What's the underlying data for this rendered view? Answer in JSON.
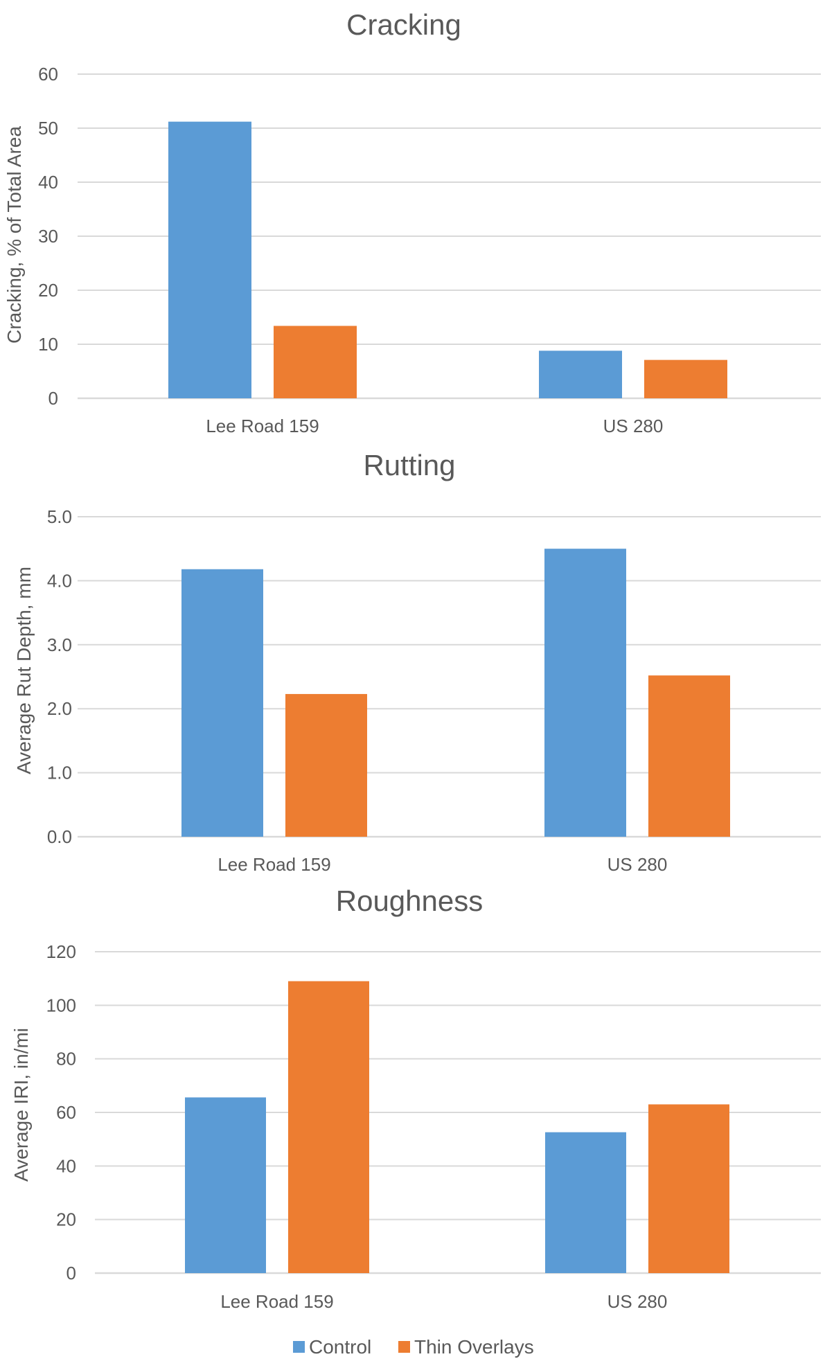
{
  "chart_data": [
    {
      "type": "bar",
      "title": "Cracking",
      "ylabel": "Cracking, % of Total Area",
      "xlabel": "",
      "categories": [
        "Lee Road 159",
        "US 280"
      ],
      "ylim": [
        0,
        60
      ],
      "yticks": [
        "0",
        "10",
        "20",
        "30",
        "40",
        "50",
        "60"
      ],
      "grid": true,
      "series": [
        {
          "name": "Control",
          "values": [
            51.2,
            8.8
          ]
        },
        {
          "name": "Thin Overlays",
          "values": [
            13.4,
            7.1
          ]
        }
      ]
    },
    {
      "type": "bar",
      "title": "Rutting",
      "ylabel": "Average Rut Depth, mm",
      "xlabel": "",
      "categories": [
        "Lee Road 159",
        "US 280"
      ],
      "ylim": [
        0,
        5
      ],
      "yticks": [
        "0.0",
        "1.0",
        "2.0",
        "3.0",
        "4.0",
        "5.0"
      ],
      "grid": true,
      "series": [
        {
          "name": "Control",
          "values": [
            4.18,
            4.5
          ]
        },
        {
          "name": "Thin Overlays",
          "values": [
            2.23,
            2.52
          ]
        }
      ]
    },
    {
      "type": "bar",
      "title": "Roughness",
      "ylabel": "Average IRI, in/mi",
      "xlabel": "",
      "categories": [
        "Lee Road 159",
        "US 280"
      ],
      "ylim": [
        0,
        120
      ],
      "yticks": [
        "0",
        "20",
        "40",
        "60",
        "80",
        "100",
        "120"
      ],
      "grid": true,
      "series": [
        {
          "name": "Control",
          "values": [
            65.6,
            52.6
          ]
        },
        {
          "name": "Thin Overlays",
          "values": [
            109.0,
            63.0
          ]
        }
      ]
    }
  ],
  "legend": {
    "placement": "bottom",
    "items": [
      {
        "label": "Control",
        "color": "#5b9bd5"
      },
      {
        "label": "Thin Overlays",
        "color": "#ed7d31"
      }
    ]
  },
  "colors": {
    "Control": "#5b9bd5",
    "Thin Overlays": "#ed7d31",
    "text": "#595959",
    "grid": "#d9d9d9"
  }
}
